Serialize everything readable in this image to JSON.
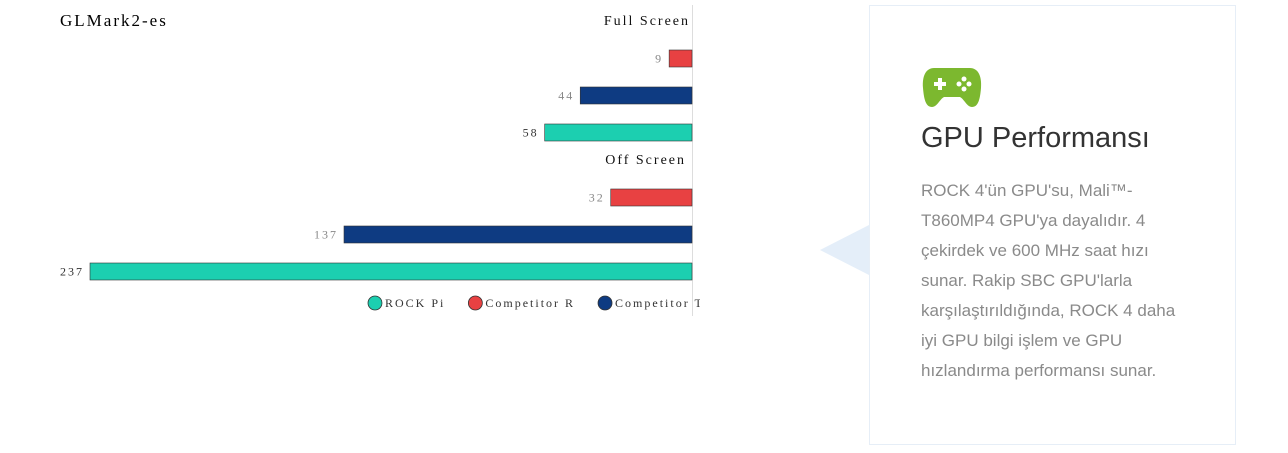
{
  "chart_data": {
    "type": "bar",
    "orientation": "horizontal",
    "title": "GLMark2-es",
    "categories": [
      "Full Screen",
      "Off Screen"
    ],
    "series": [
      {
        "name": "ROCK Pi",
        "color": "#1ccfb0",
        "values": [
          58,
          237
        ]
      },
      {
        "name": "Competitor R",
        "color": "#e84142",
        "values": [
          9,
          32
        ]
      },
      {
        "name": "Competitor T",
        "color": "#0e3b82",
        "values": [
          44,
          137
        ]
      }
    ]
  },
  "card": {
    "title": "GPU Performansı",
    "text": "ROCK 4'ün GPU'su, Mali™-T860MP4 GPU'ya dayalıdır. 4 çekirdek ve 600 MHz saat hızı sunar. Rakip SBC GPU'larla karşılaştırıldığında, ROCK 4 daha iyi GPU bilgi işlem ve GPU hızlandırma performansı sunar."
  }
}
